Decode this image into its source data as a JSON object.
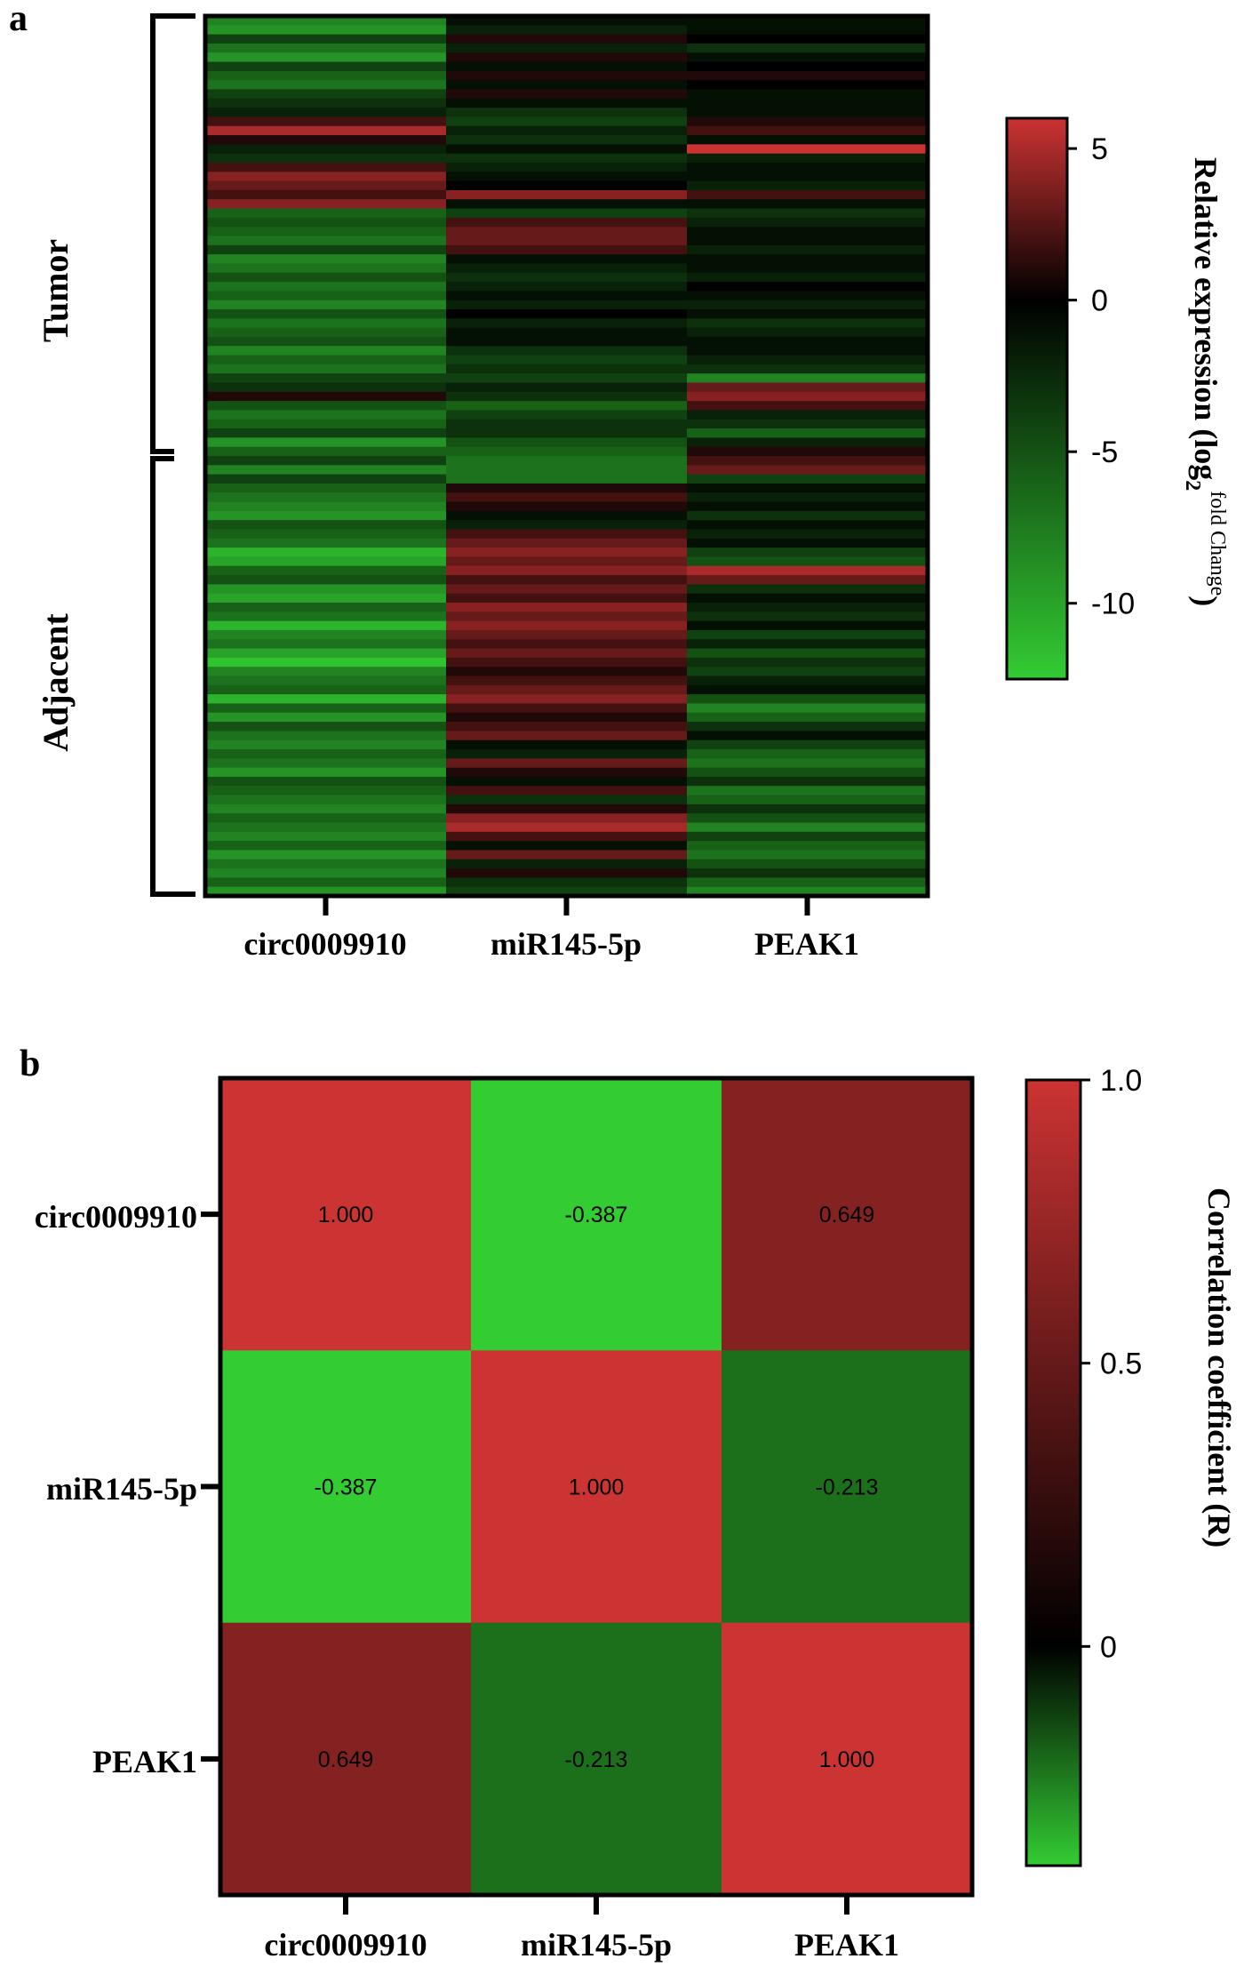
{
  "panels": {
    "a": {
      "label": "a",
      "groups": [
        "Tumor",
        "Adjacent"
      ],
      "colorbar_title": "Relative expression (log",
      "colorbar_sub": "2",
      "colorbar_sup": "fold Change",
      "colorbar_close": ")"
    },
    "b": {
      "label": "b",
      "colorbar_title": "Correlation coefficient (R)"
    }
  },
  "colors": {
    "low": "#33cc33",
    "mid": "#000000",
    "high": "#cc3333"
  },
  "chart_data": [
    {
      "type": "heatmap",
      "title": "",
      "columns": [
        "circ0009910",
        "miR145-5p",
        "PEAK1"
      ],
      "row_groups": [
        {
          "name": "Tumor",
          "rows": 48
        },
        {
          "name": "Adjacent",
          "rows": 48
        }
      ],
      "colorbar_label": "Relative expression (log2 fold Change)",
      "colorbar_ticks": [
        5,
        0,
        -5,
        -10
      ],
      "colorbar_range": [
        -12.5,
        6
      ],
      "values": [
        [
          -8,
          -1,
          -1
        ],
        [
          -9,
          -2,
          -1
        ],
        [
          -4,
          1,
          0
        ],
        [
          -7,
          -2,
          -3
        ],
        [
          -9,
          1,
          -1
        ],
        [
          -4,
          -1,
          0
        ],
        [
          -6,
          1,
          1
        ],
        [
          -7,
          -1,
          0
        ],
        [
          -4,
          1,
          -1
        ],
        [
          -3,
          -1,
          -1
        ],
        [
          -2,
          -3,
          -1
        ],
        [
          2,
          -4,
          1
        ],
        [
          5,
          -2,
          2
        ],
        [
          1,
          -3,
          -1
        ],
        [
          -2,
          -1,
          6
        ],
        [
          -3,
          -3,
          -2
        ],
        [
          2,
          -2,
          -1
        ],
        [
          4,
          -1,
          -1
        ],
        [
          3,
          0,
          -2
        ],
        [
          2,
          4,
          2
        ],
        [
          4,
          -1,
          -1
        ],
        [
          -6,
          -4,
          -3
        ],
        [
          -5,
          2,
          -2
        ],
        [
          -6,
          3,
          -1
        ],
        [
          -7,
          3,
          -1
        ],
        [
          -4,
          2,
          -2
        ],
        [
          -8,
          -1,
          -1
        ],
        [
          -7,
          -2,
          -1
        ],
        [
          -5,
          -3,
          -2
        ],
        [
          -7,
          -2,
          0
        ],
        [
          -6,
          -1,
          -1
        ],
        [
          -8,
          -2,
          -2
        ],
        [
          -5,
          0,
          -1
        ],
        [
          -7,
          -2,
          -3
        ],
        [
          -6,
          -1,
          -2
        ],
        [
          -5,
          -1,
          -1
        ],
        [
          -8,
          -3,
          -1
        ],
        [
          -6,
          -4,
          -2
        ],
        [
          -7,
          -3,
          -3
        ],
        [
          -4,
          -4,
          -8
        ],
        [
          -3,
          -2,
          3
        ],
        [
          1,
          -3,
          4
        ],
        [
          -5,
          -6,
          2
        ],
        [
          -7,
          -4,
          -2
        ],
        [
          -6,
          -3,
          -3
        ],
        [
          -4,
          -3,
          -6
        ],
        [
          -9,
          -5,
          -2
        ],
        [
          -6,
          -6,
          1
        ],
        [
          -4,
          -7,
          2
        ],
        [
          -8,
          -7,
          3
        ],
        [
          -4,
          -7,
          -4
        ],
        [
          -6,
          1,
          -1
        ],
        [
          -7,
          2,
          -2
        ],
        [
          -8,
          1,
          -1
        ],
        [
          -9,
          -1,
          -3
        ],
        [
          -5,
          -2,
          -1
        ],
        [
          -6,
          2,
          -2
        ],
        [
          -7,
          3,
          -1
        ],
        [
          -11,
          4,
          -4
        ],
        [
          -10,
          3,
          -5
        ],
        [
          -6,
          4,
          5
        ],
        [
          -5,
          2,
          3
        ],
        [
          -9,
          3,
          -3
        ],
        [
          -10,
          2,
          -1
        ],
        [
          -6,
          4,
          -2
        ],
        [
          -7,
          3,
          -3
        ],
        [
          -11,
          4,
          -1
        ],
        [
          -8,
          3,
          -4
        ],
        [
          -7,
          2,
          -2
        ],
        [
          -10,
          3,
          -5
        ],
        [
          -12,
          2,
          -3
        ],
        [
          -8,
          1,
          -4
        ],
        [
          -7,
          2,
          -2
        ],
        [
          -6,
          3,
          -1
        ],
        [
          -11,
          4,
          -5
        ],
        [
          -6,
          2,
          -8
        ],
        [
          -9,
          1,
          -6
        ],
        [
          -5,
          2,
          -3
        ],
        [
          -7,
          3,
          -1
        ],
        [
          -8,
          -1,
          -4
        ],
        [
          -6,
          -2,
          -6
        ],
        [
          -7,
          3,
          -7
        ],
        [
          -9,
          1,
          -5
        ],
        [
          -5,
          -1,
          -3
        ],
        [
          -6,
          2,
          -7
        ],
        [
          -7,
          -3,
          -6
        ],
        [
          -8,
          1,
          -3
        ],
        [
          -6,
          4,
          -5
        ],
        [
          -7,
          5,
          -8
        ],
        [
          -8,
          2,
          -4
        ],
        [
          -6,
          -1,
          -6
        ],
        [
          -9,
          3,
          -7
        ],
        [
          -7,
          -2,
          -5
        ],
        [
          -8,
          1,
          -3
        ],
        [
          -6,
          -3,
          -6
        ],
        [
          -9,
          -4,
          -8
        ]
      ]
    },
    {
      "type": "heatmap",
      "title": "",
      "rows": [
        "circ0009910",
        "miR145-5p",
        "PEAK1"
      ],
      "columns": [
        "circ0009910",
        "miR145-5p",
        "PEAK1"
      ],
      "values": [
        [
          1.0,
          -0.387,
          0.649
        ],
        [
          -0.387,
          1.0,
          -0.213
        ],
        [
          0.649,
          -0.213,
          1.0
        ]
      ],
      "cell_labels": [
        [
          "1.000",
          "-0.387",
          "0.649"
        ],
        [
          "-0.387",
          "1.000",
          "-0.213"
        ],
        [
          "0.649",
          "-0.213",
          "1.000"
        ]
      ],
      "colorbar_label": "Correlation coefficient (R)",
      "colorbar_ticks": [
        "1.0",
        "0.5",
        "0"
      ],
      "colorbar_range": [
        -0.387,
        1.0
      ]
    }
  ]
}
